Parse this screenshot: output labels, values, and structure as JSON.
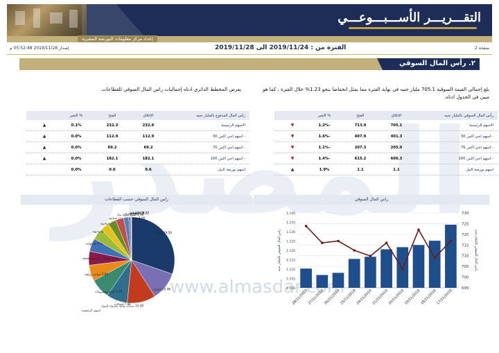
{
  "header": {
    "title": "التقـــريـــر الأســـبـــوعـــي",
    "subtitle": "إعداد مركز معلومات البورصة المصرية"
  },
  "info": {
    "issue_date": "إصدار 2019/11/28 05:52:48 م",
    "period": "الفترة من : 2019/11/24 الى 2019/11/28",
    "page": "صفحة 2"
  },
  "section": {
    "title": "٢. رأس المال السوقي"
  },
  "paragraphs": {
    "market_cap": "بلغ إجمالي القيمة السوقية 705.1 مليار جنيه في نهاية الفترة مما يمثل انخفاضا بنحو 1.23% خلال الفترة ، كما هو مبين في الجدول ادناه.",
    "sectors": "يعرض المخطط الدائري ادناه إجماليات راس المال السوقي للقطاعات."
  },
  "table_market_cap": {
    "headers": [
      "رأس المال السوقي بالمليار جنيه",
      "الإغلاق",
      "الفتح",
      "% التغير"
    ],
    "rows": [
      {
        "name": "الاسهم الرئيسية",
        "close": "705.1",
        "open": "713.9",
        "change": "-1.2%",
        "dir": "down"
      },
      {
        "name": "- اسهم اجي اكس 30",
        "close": "401.3",
        "open": "407.9",
        "change": "-1.6%",
        "dir": "down"
      },
      {
        "name": "- اسهم اجي اكس 70",
        "close": "205.0",
        "open": "207.3",
        "change": "-1.1%",
        "dir": "down"
      },
      {
        "name": "- اسهم اجي اكس 100",
        "close": "606.3",
        "open": "615.2",
        "change": "-1.4%",
        "dir": "down"
      },
      {
        "name": "اسهم بورصة النيل",
        "close": "1.1",
        "open": "1.1",
        "change": "1.9%",
        "dir": "up"
      }
    ]
  },
  "table_paid_capital": {
    "headers": [
      "راس المال المدفوع بالمليار جنيه",
      "الإغلاق",
      "الفتح",
      "% التغير"
    ],
    "rows": [
      {
        "name": "الاسهم الرئيسية",
        "close": "232.6",
        "open": "232.3",
        "change": "0.1%",
        "dir": "up"
      },
      {
        "name": "- اسهم اجي اكس 30",
        "close": "112.9",
        "open": "112.9",
        "change": "0.0%",
        "dir": "up"
      },
      {
        "name": "- اسهم اجي اكس 70",
        "close": "69.2",
        "open": "69.2",
        "change": "0.0%",
        "dir": "up"
      },
      {
        "name": "- اسهم اجي اكس 100",
        "close": "182.1",
        "open": "182.1",
        "change": "0.0%",
        "dir": "up"
      },
      {
        "name": "اسهم بورصة النيل",
        "close": "0.6",
        "open": "0.6",
        "change": "0.0%",
        "dir": "none"
      }
    ]
  },
  "charts": {
    "market_cap_title": "راس المال السوقي",
    "sectors_title": "راس المال السوقي حسب القطاعات"
  },
  "chart_data": [
    {
      "type": "bar",
      "title": "راس المال السوقي",
      "categories": [
        "28/11/2019",
        "27/11/2019",
        "26/11/2019",
        "25/11/2019",
        "24/11/2019",
        "21/11/2019",
        "20/11/2019",
        "19/11/2019",
        "18/11/2019",
        "17/11/2019"
      ],
      "series": [
        {
          "name": "",
          "kind": "bar",
          "axis": "right",
          "values": [
            704.0,
            701.0,
            702.0,
            708.5,
            709.5,
            713.0,
            714.0,
            715.0,
            717.0,
            724.5
          ]
        },
        {
          "name": "",
          "kind": "line",
          "axis": "left",
          "values": [
            1.133,
            1.124,
            1.125,
            1.12,
            1.117,
            1.124,
            1.11,
            1.131,
            1.116,
            1.125
          ]
        }
      ],
      "ylim_right": [
        695,
        730
      ],
      "yticks_right": [
        "695",
        "700",
        "705",
        "710",
        "715",
        "720",
        "725",
        "730"
      ],
      "ylim_left": [
        1.1,
        1.14
      ],
      "yticks_left": [
        "1.100",
        "1.105",
        "1.110",
        "1.115",
        "1.120",
        "1.125",
        "1.130",
        "1.135",
        "1.140"
      ],
      "ylabel_right": "راس المال السوقي بالمليار جنيه",
      "ylabel_left": "راس المال السوقي بالمليار جنيه",
      "colors": {
        "bar": "#1f4e8c",
        "line": "#6b1d1d"
      }
    },
    {
      "type": "pie",
      "title": "راس المال السوقي حسب القطاعات",
      "slices": [
        {
          "label": "البنوك",
          "value": 29.59,
          "color": "#1a3a6b"
        },
        {
          "label": "عقارات",
          "value": 10.46,
          "color": "#7b6fb3"
        },
        {
          "label": "خدمات مالية باستثناء البنوك",
          "value": 10.5,
          "color": "#c23b1e"
        },
        {
          "label": "اتصالات",
          "value": 7.8,
          "color": "#2f6e8c"
        },
        {
          "label": "اغذية ومشروبات",
          "value": 7.25,
          "color": "#3a8a6f"
        },
        {
          "label": "سياحة وترفيه",
          "value": 5.86,
          "color": "#e98a1a"
        },
        {
          "label": "منتجات منزلية وشخصية",
          "value": 5.13,
          "color": "#8b1a4a"
        },
        {
          "label": "كيماويات",
          "value": 4.82,
          "color": "#3f6fb5"
        },
        {
          "label": "رعاية صحية وادوية",
          "value": 4.25,
          "color": "#9bbb3b"
        },
        {
          "label": "موارد اساسية",
          "value": 3.23,
          "color": "#e5c21b"
        },
        {
          "label": "خدمات ومنتجات صناعية",
          "value": 3.0,
          "color": "#6b8e23"
        },
        {
          "label": "تشييد ومواد بناء",
          "value": 2.96,
          "color": "#c0504d"
        },
        {
          "label": "تجزئة",
          "value": 1.87,
          "color": "#4f81bd"
        },
        {
          "label": "غاز وبترول",
          "value": 0.77,
          "color": "#8064a2"
        },
        {
          "label": "اعلام",
          "value": 0.19,
          "color": "#f79646"
        },
        {
          "label": "تكنولوجيا",
          "value": 0.12,
          "color": "#4bacc6"
        }
      ],
      "labels_shown": [
        "29.59",
        "10.46",
        "10.50",
        "7.80",
        "7.25",
        "5.86",
        "5.13",
        "4.82",
        "4.25",
        "3.23",
        "3.00",
        "2.96",
        "1.87",
        "0.77",
        "0.19",
        "0.12"
      ],
      "legend_label": "اسهم الرئيسية"
    }
  ],
  "watermark": {
    "text": "المصدر",
    "url": "www.almasdar.com"
  }
}
